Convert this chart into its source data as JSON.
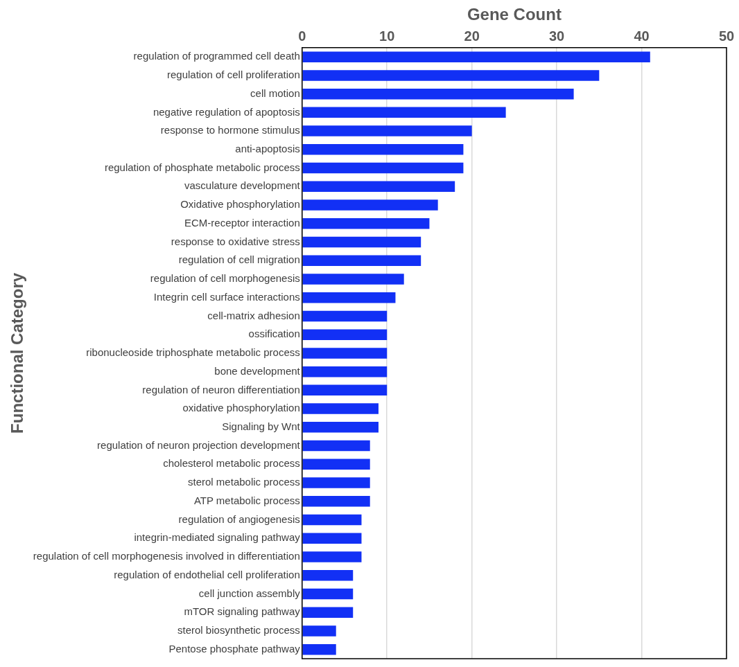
{
  "chart_data": {
    "type": "bar",
    "orientation": "horizontal",
    "xlabel": "Gene Count",
    "ylabel": "Functional Category",
    "categories": [
      "regulation of programmed cell death",
      "regulation of cell proliferation",
      "cell motion",
      "negative regulation of apoptosis",
      "response to hormone stimulus",
      "anti-apoptosis",
      "regulation of phosphate metabolic process",
      "vasculature development",
      "Oxidative phosphorylation",
      "ECM-receptor interaction",
      "response to oxidative stress",
      "regulation of cell migration",
      "regulation of cell morphogenesis",
      "Integrin cell surface interactions",
      "cell-matrix adhesion",
      "ossification",
      "ribonucleoside triphosphate metabolic process",
      "bone development",
      "regulation of neuron differentiation",
      "oxidative phosphorylation",
      "Signaling by Wnt",
      "regulation of neuron projection development",
      "cholesterol metabolic process",
      "sterol metabolic process",
      "ATP metabolic process",
      "regulation of angiogenesis",
      "integrin-mediated signaling pathway",
      "regulation of cell morphogenesis involved in differentiation",
      "regulation of endothelial cell proliferation",
      "cell junction assembly",
      "mTOR signaling pathway",
      "sterol biosynthetic process",
      "Pentose phosphate pathway"
    ],
    "values": [
      41,
      35,
      32,
      24,
      20,
      19,
      19,
      18,
      16,
      15,
      14,
      14,
      12,
      11,
      10,
      10,
      10,
      10,
      10,
      9,
      9,
      8,
      8,
      8,
      8,
      7,
      7,
      7,
      6,
      6,
      6,
      4,
      4
    ],
    "color": "#1230f5",
    "xlim": [
      0,
      50
    ],
    "xticks": [
      0,
      10,
      20,
      30,
      40,
      50
    ],
    "grid": "x",
    "legend": false
  }
}
